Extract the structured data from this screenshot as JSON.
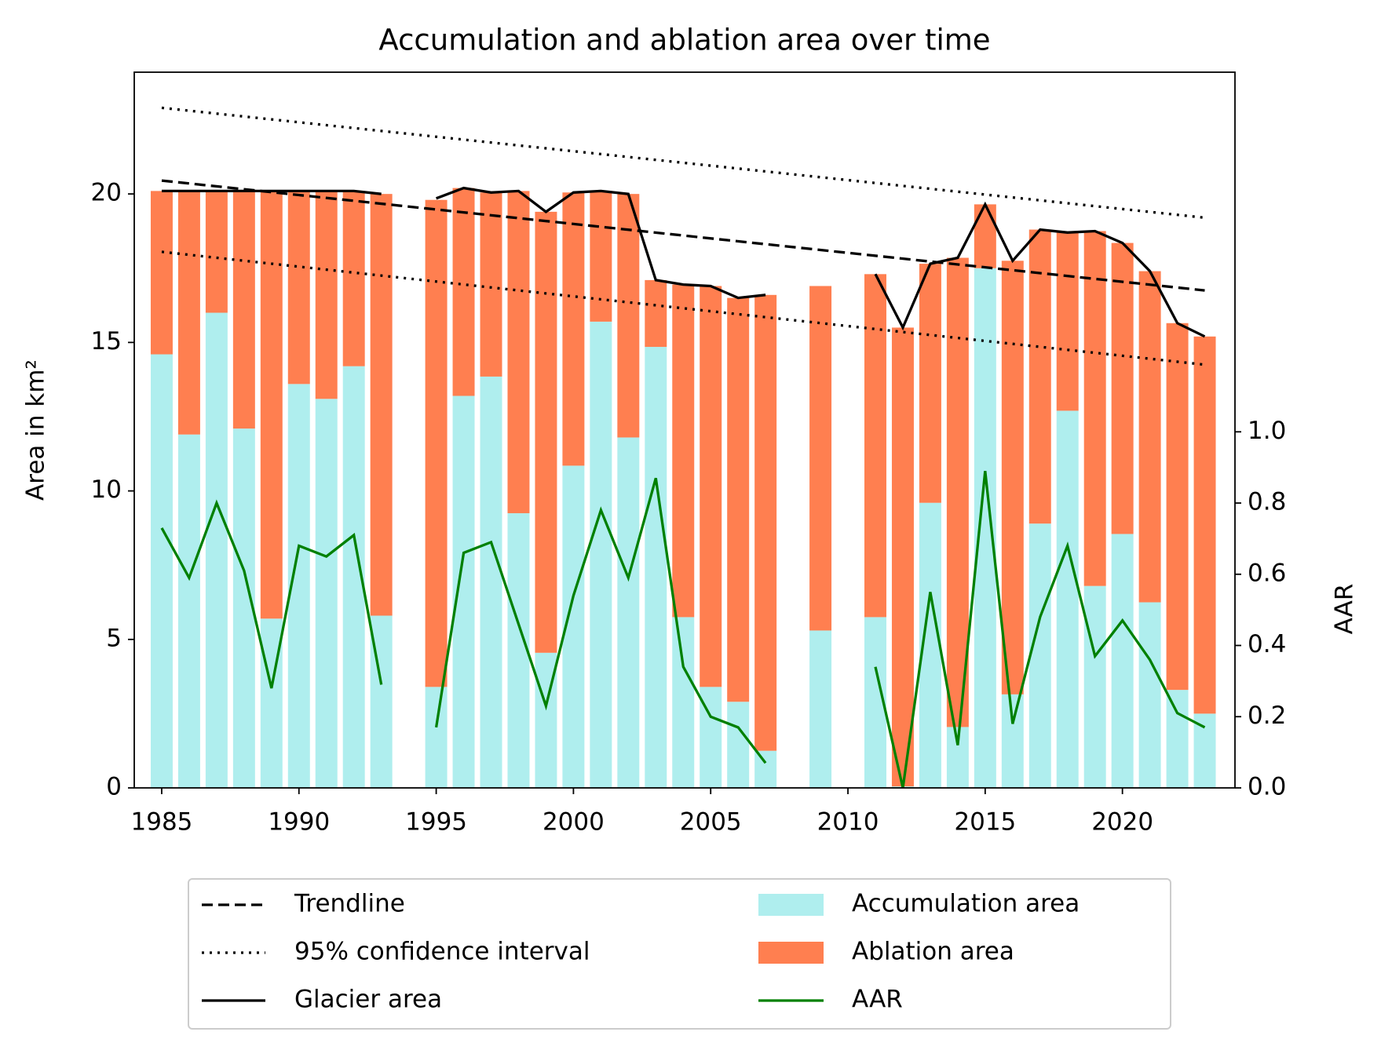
{
  "chart_data": {
    "type": "bar",
    "title": "Accumulation and ablation area over time",
    "ylabel": "Area in km²",
    "y2label": "AAR",
    "x": [
      1985,
      1986,
      1987,
      1988,
      1989,
      1990,
      1991,
      1992,
      1993,
      1994,
      1995,
      1996,
      1997,
      1998,
      1999,
      2000,
      2001,
      2002,
      2003,
      2004,
      2005,
      2006,
      2007,
      2008,
      2009,
      2010,
      2011,
      2012,
      2013,
      2014,
      2015,
      2016,
      2017,
      2018,
      2019,
      2020,
      2021,
      2022,
      2023
    ],
    "series": [
      {
        "name": "Accumulation area",
        "type": "bar",
        "color": "#afeeee",
        "values": [
          14.6,
          11.9,
          16.0,
          12.1,
          5.7,
          13.6,
          13.1,
          14.2,
          5.8,
          null,
          3.4,
          13.2,
          13.85,
          9.25,
          4.55,
          10.85,
          15.7,
          11.8,
          14.85,
          5.75,
          3.4,
          2.9,
          1.25,
          null,
          5.3,
          null,
          5.75,
          0.05,
          9.6,
          2.05,
          17.5,
          3.15,
          8.9,
          12.7,
          6.8,
          8.55,
          6.25,
          3.3,
          2.5
        ]
      },
      {
        "name": "Ablation area",
        "type": "bar",
        "color": "#ff7f50",
        "values": [
          5.5,
          8.2,
          4.1,
          8.0,
          14.4,
          6.5,
          7.0,
          5.9,
          14.2,
          null,
          16.4,
          7.0,
          6.2,
          10.85,
          14.85,
          9.2,
          4.4,
          8.2,
          2.25,
          11.2,
          13.5,
          13.6,
          15.35,
          null,
          11.6,
          null,
          11.55,
          15.45,
          8.05,
          15.8,
          2.15,
          14.6,
          9.9,
          6.0,
          11.95,
          9.8,
          11.15,
          12.35,
          12.7
        ]
      },
      {
        "name": "Glacier area",
        "type": "line",
        "color": "#000000",
        "values": [
          20.1,
          20.1,
          20.1,
          20.1,
          20.1,
          20.1,
          20.1,
          20.1,
          20.0,
          null,
          19.85,
          20.2,
          20.05,
          20.1,
          19.4,
          20.05,
          20.1,
          20.0,
          17.1,
          16.95,
          16.9,
          16.5,
          16.6,
          null,
          null,
          null,
          17.3,
          15.5,
          17.65,
          17.85,
          19.65,
          17.75,
          18.8,
          18.7,
          18.75,
          18.35,
          17.4,
          15.65,
          15.2
        ]
      },
      {
        "name": "AAR",
        "type": "line",
        "axis": "y2",
        "color": "#008000",
        "values": [
          0.73,
          0.59,
          0.8,
          0.61,
          0.28,
          0.68,
          0.65,
          0.71,
          0.29,
          null,
          0.17,
          0.66,
          0.69,
          0.46,
          0.23,
          0.54,
          0.78,
          0.59,
          0.87,
          0.34,
          0.2,
          0.17,
          0.07,
          null,
          null,
          null,
          0.34,
          0.0,
          0.55,
          0.12,
          0.89,
          0.18,
          0.48,
          0.68,
          0.37,
          0.47,
          0.36,
          0.21,
          0.17
        ]
      }
    ],
    "trend": {
      "name": "Trendline",
      "color": "#000000",
      "x": [
        1985,
        2023
      ],
      "values": [
        20.45,
        16.75
      ]
    },
    "confidence_interval": {
      "name": "95% confidence interval",
      "color": "#000000",
      "x": [
        1985,
        2023
      ],
      "upper": [
        22.9,
        19.2
      ],
      "lower": [
        18.05,
        14.25
      ]
    },
    "xlim": [
      1984,
      2024.1
    ],
    "xticks": [
      1985,
      1990,
      1995,
      2000,
      2005,
      2010,
      2015,
      2020
    ],
    "ylim": [
      0,
      24.1
    ],
    "yticks": [
      0,
      5,
      10,
      15,
      20
    ],
    "y2lim": [
      0,
      2.01
    ],
    "y2ticks": [
      {
        "value": 0,
        "label": "0.0"
      },
      0.2,
      0.4,
      0.6,
      0.8,
      {
        "value": 1,
        "label": "1.0"
      }
    ],
    "grid": false
  }
}
